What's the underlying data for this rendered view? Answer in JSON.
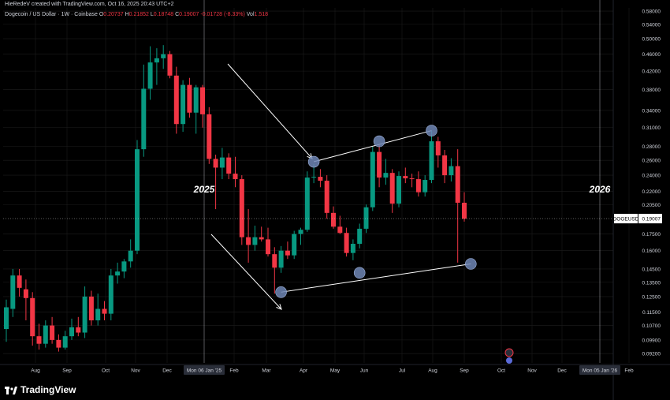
{
  "header": {
    "credit": "HieRedeV created with TradingView.com, Oct 16, 2025 20:43 UTC+2",
    "symbol_title": "Dogecoin / US Dollar · 1W · Coinbase",
    "ohlc": [
      {
        "label": "O",
        "value": "0.20737"
      },
      {
        "label": "H",
        "value": "0.21852"
      },
      {
        "label": "L",
        "value": "0.18748"
      },
      {
        "label": "C",
        "value": "0.19007"
      },
      {
        "label": "",
        "value": "-0.01728 (-8.33%)"
      }
    ],
    "vol_label": "Vol",
    "vol_value": "1.518"
  },
  "brand": {
    "name": "TradingView"
  },
  "colors": {
    "up": "#089981",
    "down": "#f23645",
    "bg": "#000000",
    "grid": "#1c1c1c",
    "text": "#d1d4dc",
    "annotation": "#ffffff",
    "circle": "#6f86b5"
  },
  "chart_data": {
    "type": "candlestick",
    "title": "Dogecoin / US Dollar · 1W · Coinbase",
    "symbol": "DOGEUSD",
    "last_price": "0.19007",
    "y_scale": "log",
    "ylim": [
      0.0875,
      0.59
    ],
    "y_ticks": [
      "0.58000",
      "0.54000",
      "0.50000",
      "0.46000",
      "0.42000",
      "0.38000",
      "0.34000",
      "0.31000",
      "0.28000",
      "0.26000",
      "0.24000",
      "0.22000",
      "0.20500",
      "0.17500",
      "0.16000",
      "0.14500",
      "0.13500",
      "0.12500",
      "0.11500",
      "0.10700",
      "0.09900",
      "0.09200"
    ],
    "x_labels": [
      "Aug",
      "Sep",
      "Oct",
      "Nov",
      "Dec",
      "Mon 06 Jan '25",
      "Feb",
      "Mar",
      "Apr",
      "May",
      "Jun",
      "Jul",
      "Aug",
      "Sep",
      "Oct",
      "Nov",
      "Dec",
      "Mon 05 Jan '26",
      "Feb"
    ],
    "year_markers": [
      "2025",
      "2026"
    ],
    "candles": [
      {
        "o": 0.105,
        "h": 0.123,
        "l": 0.098,
        "c": 0.118
      },
      {
        "o": 0.117,
        "h": 0.145,
        "l": 0.112,
        "c": 0.14
      },
      {
        "o": 0.14,
        "h": 0.145,
        "l": 0.125,
        "c": 0.131
      },
      {
        "o": 0.13,
        "h": 0.137,
        "l": 0.11,
        "c": 0.124
      },
      {
        "o": 0.124,
        "h": 0.128,
        "l": 0.096,
        "c": 0.101
      },
      {
        "o": 0.101,
        "h": 0.108,
        "l": 0.094,
        "c": 0.097
      },
      {
        "o": 0.097,
        "h": 0.11,
        "l": 0.095,
        "c": 0.107
      },
      {
        "o": 0.107,
        "h": 0.112,
        "l": 0.097,
        "c": 0.099
      },
      {
        "o": 0.099,
        "h": 0.102,
        "l": 0.093,
        "c": 0.095
      },
      {
        "o": 0.095,
        "h": 0.104,
        "l": 0.094,
        "c": 0.101
      },
      {
        "o": 0.101,
        "h": 0.111,
        "l": 0.099,
        "c": 0.106
      },
      {
        "o": 0.106,
        "h": 0.112,
        "l": 0.101,
        "c": 0.103
      },
      {
        "o": 0.103,
        "h": 0.132,
        "l": 0.1,
        "c": 0.125
      },
      {
        "o": 0.125,
        "h": 0.129,
        "l": 0.107,
        "c": 0.11
      },
      {
        "o": 0.11,
        "h": 0.127,
        "l": 0.107,
        "c": 0.117
      },
      {
        "o": 0.117,
        "h": 0.122,
        "l": 0.11,
        "c": 0.114
      },
      {
        "o": 0.114,
        "h": 0.145,
        "l": 0.11,
        "c": 0.14
      },
      {
        "o": 0.14,
        "h": 0.15,
        "l": 0.134,
        "c": 0.143
      },
      {
        "o": 0.143,
        "h": 0.153,
        "l": 0.138,
        "c": 0.151
      },
      {
        "o": 0.151,
        "h": 0.17,
        "l": 0.146,
        "c": 0.16
      },
      {
        "o": 0.16,
        "h": 0.29,
        "l": 0.157,
        "c": 0.276
      },
      {
        "o": 0.276,
        "h": 0.435,
        "l": 0.265,
        "c": 0.382
      },
      {
        "o": 0.382,
        "h": 0.48,
        "l": 0.36,
        "c": 0.44
      },
      {
        "o": 0.44,
        "h": 0.475,
        "l": 0.39,
        "c": 0.45
      },
      {
        "o": 0.45,
        "h": 0.483,
        "l": 0.425,
        "c": 0.46
      },
      {
        "o": 0.46,
        "h": 0.468,
        "l": 0.404,
        "c": 0.41
      },
      {
        "o": 0.41,
        "h": 0.43,
        "l": 0.3,
        "c": 0.316
      },
      {
        "o": 0.316,
        "h": 0.4,
        "l": 0.303,
        "c": 0.39
      },
      {
        "o": 0.39,
        "h": 0.405,
        "l": 0.327,
        "c": 0.336
      },
      {
        "o": 0.336,
        "h": 0.39,
        "l": 0.3,
        "c": 0.385
      },
      {
        "o": 0.385,
        "h": 0.39,
        "l": 0.31,
        "c": 0.333
      },
      {
        "o": 0.333,
        "h": 0.346,
        "l": 0.255,
        "c": 0.262
      },
      {
        "o": 0.262,
        "h": 0.268,
        "l": 0.2,
        "c": 0.25
      },
      {
        "o": 0.25,
        "h": 0.278,
        "l": 0.235,
        "c": 0.264
      },
      {
        "o": 0.264,
        "h": 0.27,
        "l": 0.235,
        "c": 0.242
      },
      {
        "o": 0.242,
        "h": 0.265,
        "l": 0.225,
        "c": 0.235
      },
      {
        "o": 0.235,
        "h": 0.24,
        "l": 0.165,
        "c": 0.172
      },
      {
        "o": 0.172,
        "h": 0.2,
        "l": 0.15,
        "c": 0.165
      },
      {
        "o": 0.165,
        "h": 0.183,
        "l": 0.16,
        "c": 0.172
      },
      {
        "o": 0.172,
        "h": 0.182,
        "l": 0.168,
        "c": 0.17
      },
      {
        "o": 0.17,
        "h": 0.181,
        "l": 0.155,
        "c": 0.157
      },
      {
        "o": 0.157,
        "h": 0.163,
        "l": 0.127,
        "c": 0.146
      },
      {
        "o": 0.146,
        "h": 0.164,
        "l": 0.142,
        "c": 0.16
      },
      {
        "o": 0.16,
        "h": 0.168,
        "l": 0.153,
        "c": 0.156
      },
      {
        "o": 0.156,
        "h": 0.178,
        "l": 0.153,
        "c": 0.175
      },
      {
        "o": 0.175,
        "h": 0.181,
        "l": 0.165,
        "c": 0.179
      },
      {
        "o": 0.179,
        "h": 0.245,
        "l": 0.177,
        "c": 0.237
      },
      {
        "o": 0.237,
        "h": 0.255,
        "l": 0.23,
        "c": 0.238
      },
      {
        "o": 0.238,
        "h": 0.248,
        "l": 0.225,
        "c": 0.233
      },
      {
        "o": 0.233,
        "h": 0.24,
        "l": 0.19,
        "c": 0.196
      },
      {
        "o": 0.196,
        "h": 0.203,
        "l": 0.18,
        "c": 0.182
      },
      {
        "o": 0.182,
        "h": 0.193,
        "l": 0.175,
        "c": 0.176
      },
      {
        "o": 0.176,
        "h": 0.181,
        "l": 0.155,
        "c": 0.158
      },
      {
        "o": 0.158,
        "h": 0.17,
        "l": 0.152,
        "c": 0.166
      },
      {
        "o": 0.166,
        "h": 0.185,
        "l": 0.162,
        "c": 0.18
      },
      {
        "o": 0.18,
        "h": 0.205,
        "l": 0.176,
        "c": 0.202
      },
      {
        "o": 0.202,
        "h": 0.28,
        "l": 0.198,
        "c": 0.272
      },
      {
        "o": 0.272,
        "h": 0.282,
        "l": 0.225,
        "c": 0.237
      },
      {
        "o": 0.237,
        "h": 0.262,
        "l": 0.228,
        "c": 0.243
      },
      {
        "o": 0.243,
        "h": 0.248,
        "l": 0.196,
        "c": 0.206
      },
      {
        "o": 0.206,
        "h": 0.245,
        "l": 0.202,
        "c": 0.239
      },
      {
        "o": 0.239,
        "h": 0.25,
        "l": 0.23,
        "c": 0.236
      },
      {
        "o": 0.236,
        "h": 0.242,
        "l": 0.225,
        "c": 0.235
      },
      {
        "o": 0.235,
        "h": 0.245,
        "l": 0.214,
        "c": 0.219
      },
      {
        "o": 0.219,
        "h": 0.24,
        "l": 0.214,
        "c": 0.234
      },
      {
        "o": 0.234,
        "h": 0.305,
        "l": 0.23,
        "c": 0.288
      },
      {
        "o": 0.288,
        "h": 0.295,
        "l": 0.25,
        "c": 0.267
      },
      {
        "o": 0.267,
        "h": 0.275,
        "l": 0.23,
        "c": 0.24
      },
      {
        "o": 0.24,
        "h": 0.263,
        "l": 0.232,
        "c": 0.252
      },
      {
        "o": 0.252,
        "h": 0.276,
        "l": 0.15,
        "c": 0.207
      },
      {
        "o": 0.207,
        "h": 0.219,
        "l": 0.187,
        "c": 0.19
      }
    ],
    "annotations": {
      "arrows": [
        "down-left-high",
        "down-left-low"
      ],
      "trendline_upper": [
        {
          "i": 47,
          "p": 0.258
        },
        {
          "i": 57,
          "p": 0.288
        },
        {
          "i": 65,
          "p": 0.305
        }
      ],
      "trendline_lower": [
        {
          "i": 42,
          "p": 0.128
        },
        {
          "i": 54,
          "p": 0.142
        },
        {
          "i": 71,
          "p": 0.149
        }
      ]
    }
  }
}
